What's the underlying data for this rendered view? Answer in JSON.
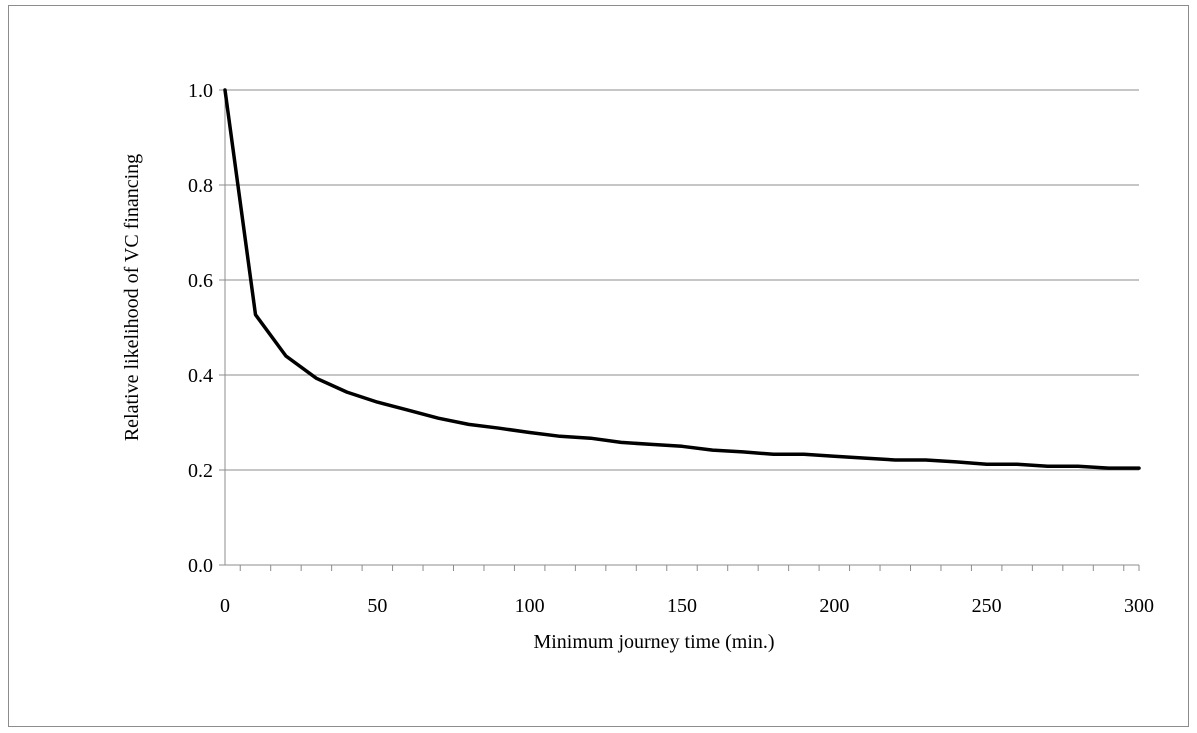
{
  "chart_data": {
    "type": "line",
    "title": "",
    "xlabel": "Minimum journey time (min.)",
    "ylabel": "Relative likelihood of VC financing",
    "xlim": [
      0,
      300
    ],
    "ylim": [
      0,
      1
    ],
    "x_ticks": [
      "0",
      "50",
      "100",
      "150",
      "200",
      "250",
      "300"
    ],
    "x_tick_values": [
      0,
      50,
      100,
      150,
      200,
      250,
      300
    ],
    "y_ticks": [
      "0.0",
      "0.2",
      "0.4",
      "0.6",
      "0.8",
      "1.0"
    ],
    "y_tick_values": [
      0,
      0.2,
      0.4,
      0.6,
      0.8,
      1.0
    ],
    "grid": "horizontal",
    "legend": "none",
    "series": [
      {
        "color": "#000000",
        "x": [
          0,
          10,
          20,
          30,
          40,
          50,
          60,
          70,
          80,
          90,
          100,
          110,
          120,
          130,
          140,
          150,
          160,
          170,
          180,
          190,
          200,
          210,
          220,
          230,
          240,
          250,
          260,
          270,
          280,
          290,
          300
        ],
        "values": [
          1.0,
          0.527,
          0.44,
          0.393,
          0.364,
          0.343,
          0.326,
          0.309,
          0.296,
          0.288,
          0.279,
          0.271,
          0.267,
          0.258,
          0.254,
          0.25,
          0.242,
          0.238,
          0.233,
          0.233,
          0.229,
          0.225,
          0.221,
          0.221,
          0.217,
          0.212,
          0.212,
          0.208,
          0.208,
          0.204,
          0.204
        ]
      }
    ]
  }
}
